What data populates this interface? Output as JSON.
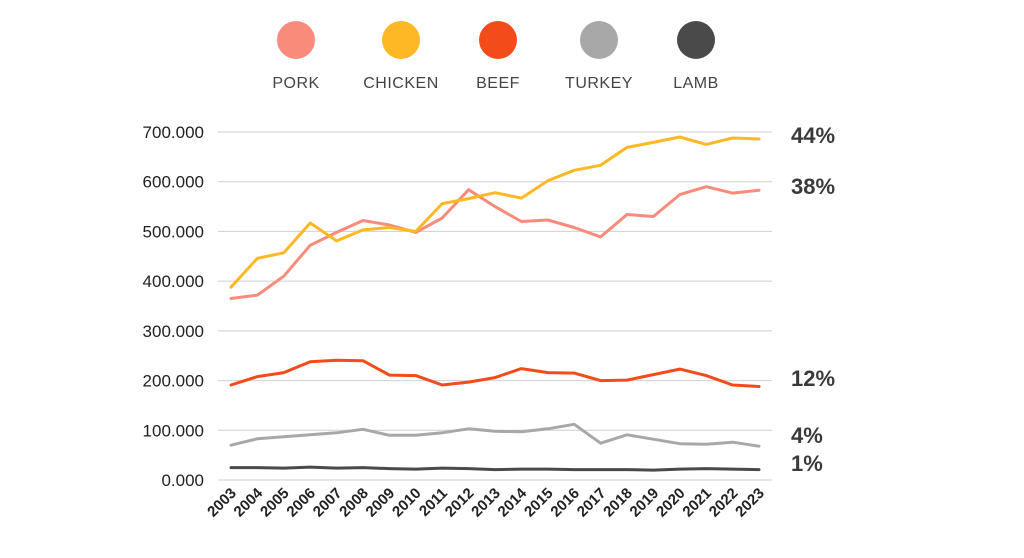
{
  "chart_data": {
    "type": "line",
    "x": [
      "2003",
      "2004",
      "2005",
      "2006",
      "2007",
      "2008",
      "2009",
      "2010",
      "2011",
      "2012",
      "2013",
      "2014",
      "2015",
      "2016",
      "2017",
      "2018",
      "2019",
      "2020",
      "2021",
      "2022",
      "2023"
    ],
    "ylim": [
      0,
      700000
    ],
    "yticks": [
      0,
      100000,
      200000,
      300000,
      400000,
      500000,
      600000,
      700000
    ],
    "ytick_labels": [
      "0.000",
      "100.000",
      "200.000",
      "300.000",
      "400.000",
      "500.000",
      "600.000",
      "700.000"
    ],
    "grid": true,
    "legend_position": "top",
    "series": [
      {
        "name": "PORK",
        "color": "#F98B7B",
        "share": "38%",
        "values": [
          365000,
          372000,
          410000,
          472000,
          498000,
          522000,
          513000,
          498000,
          527000,
          584000,
          550000,
          520000,
          523000,
          508000,
          489000,
          534000,
          530000,
          574000,
          590000,
          577000,
          583000
        ]
      },
      {
        "name": "CHICKEN",
        "color": "#FDB823",
        "share": "44%",
        "values": [
          388000,
          446000,
          457000,
          517000,
          481000,
          503000,
          508000,
          500000,
          556000,
          566000,
          578000,
          567000,
          602000,
          623000,
          633000,
          669000,
          679000,
          690000,
          675000,
          688000,
          686000
        ]
      },
      {
        "name": "BEEF",
        "color": "#F44B1B",
        "share": "12%",
        "values": [
          191000,
          208000,
          216000,
          238000,
          241000,
          240000,
          211000,
          210000,
          191000,
          197000,
          206000,
          224000,
          216000,
          215000,
          200000,
          201000,
          212000,
          223000,
          210000,
          191000,
          188000
        ]
      },
      {
        "name": "TURKEY",
        "color": "#A8A8A8",
        "share": "4%",
        "values": [
          70000,
          83000,
          87000,
          91000,
          95000,
          102000,
          90000,
          90000,
          95000,
          103000,
          98000,
          97000,
          103000,
          112000,
          74000,
          91000,
          82000,
          73000,
          72000,
          76000,
          68000
        ]
      },
      {
        "name": "LAMB",
        "color": "#4A4A4A",
        "share": "1%",
        "values": [
          25000,
          25000,
          24000,
          26000,
          24000,
          25000,
          23000,
          22000,
          24000,
          23000,
          21000,
          22000,
          22000,
          21000,
          21000,
          21000,
          20000,
          22000,
          23000,
          22000,
          21000
        ]
      }
    ]
  }
}
